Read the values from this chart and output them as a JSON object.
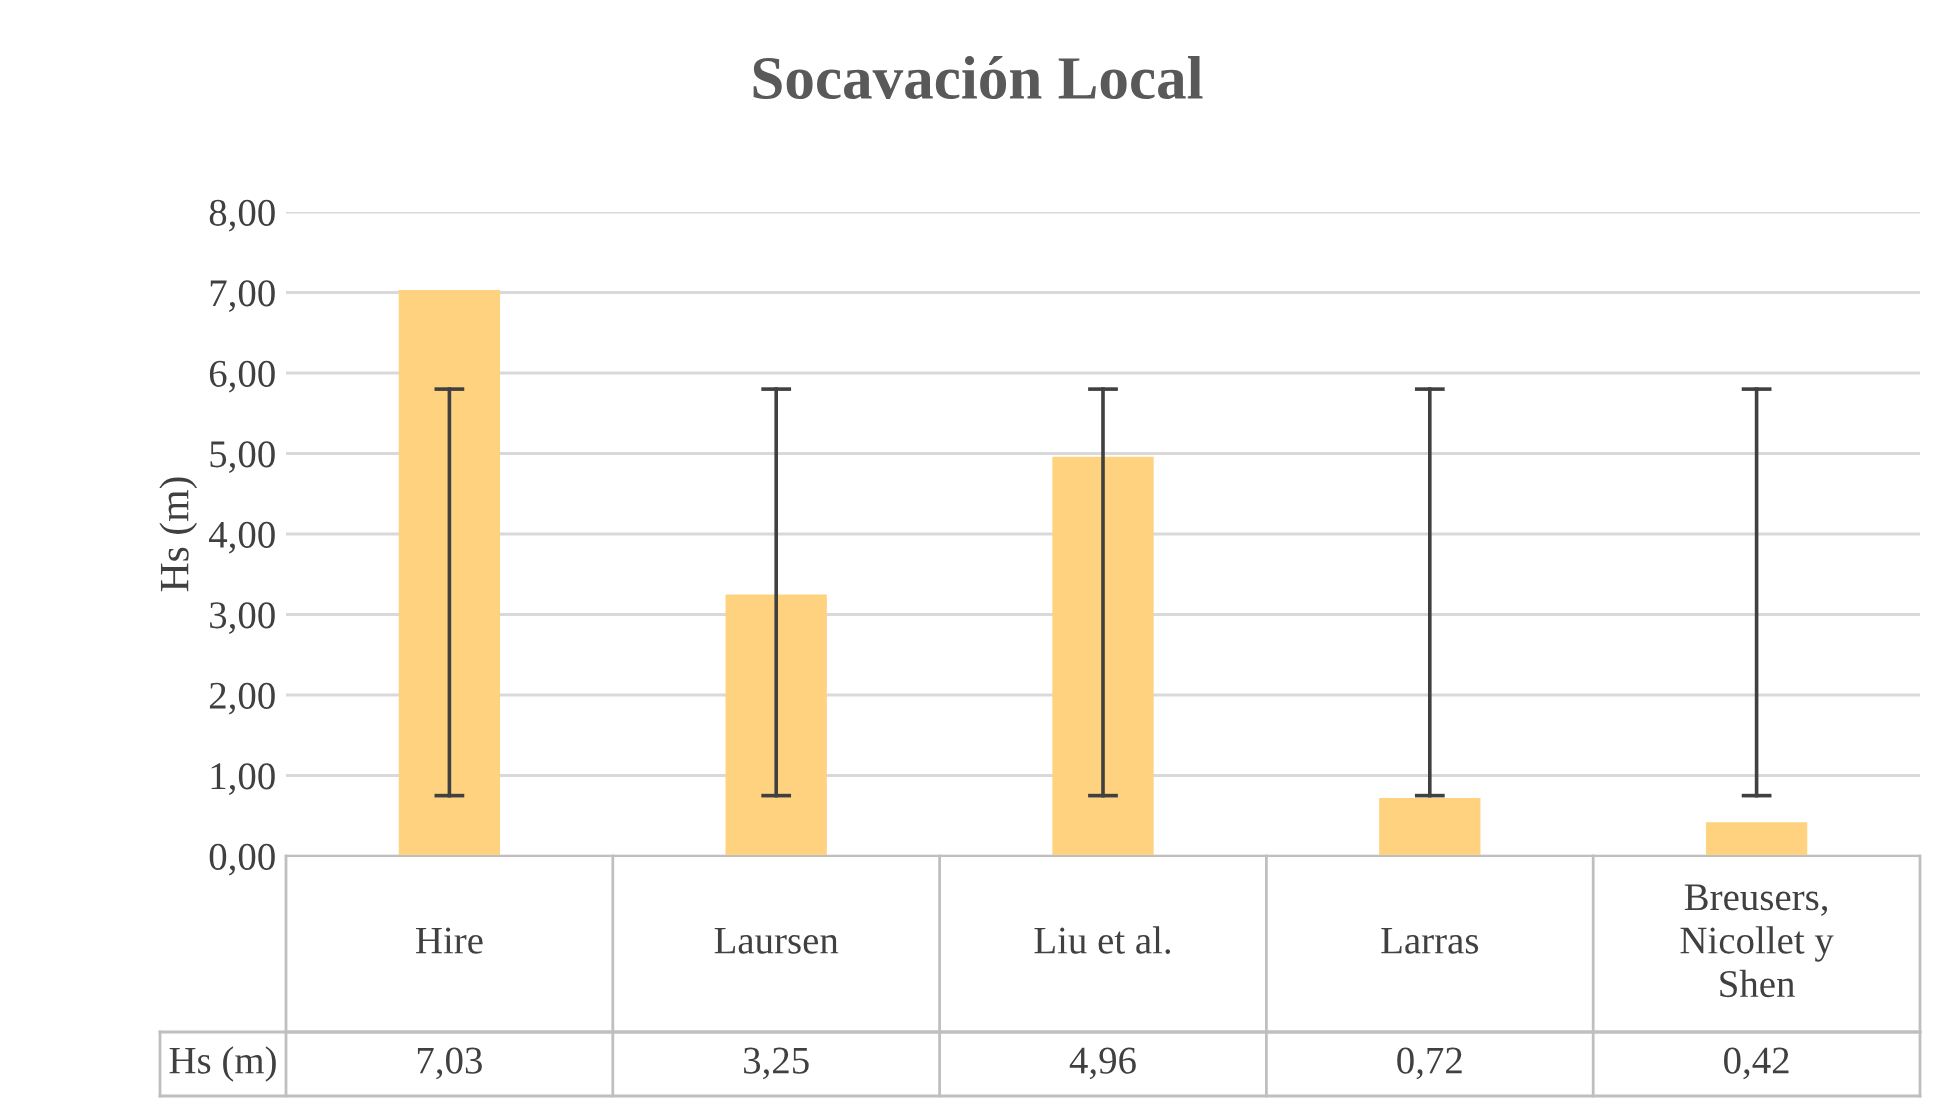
{
  "chart_data": {
    "type": "bar",
    "title": "Socavación Local",
    "ylabel": "Hs (m)",
    "categories": [
      "Hire",
      "Laursen",
      "Liu et al.",
      "Larras",
      "Breusers, Nicollet y Shen"
    ],
    "series": [
      {
        "name": "Hs (m)",
        "color": "#ffd280",
        "values": [
          7.03,
          3.25,
          4.96,
          0.72,
          0.42
        ],
        "errors": [
          [
            0.75,
            5.8
          ],
          [
            0.75,
            5.8
          ],
          [
            0.75,
            5.8
          ],
          [
            0.75,
            5.8
          ],
          [
            0.75,
            5.8
          ]
        ],
        "value_labels": [
          "7,03",
          "3,25",
          "4,96",
          "0,72",
          "0,42"
        ]
      }
    ],
    "ylim": [
      0,
      8
    ],
    "yticks": [
      {
        "value": 0,
        "label": "0,00"
      },
      {
        "value": 1,
        "label": "1,00"
      },
      {
        "value": 2,
        "label": "2,00"
      },
      {
        "value": 3,
        "label": "3,00"
      },
      {
        "value": 4,
        "label": "4,00"
      },
      {
        "value": 5,
        "label": "5,00"
      },
      {
        "value": 6,
        "label": "6,00"
      },
      {
        "value": 7,
        "label": "7,00"
      },
      {
        "value": 8,
        "label": "8,00"
      }
    ],
    "grid": "y"
  }
}
